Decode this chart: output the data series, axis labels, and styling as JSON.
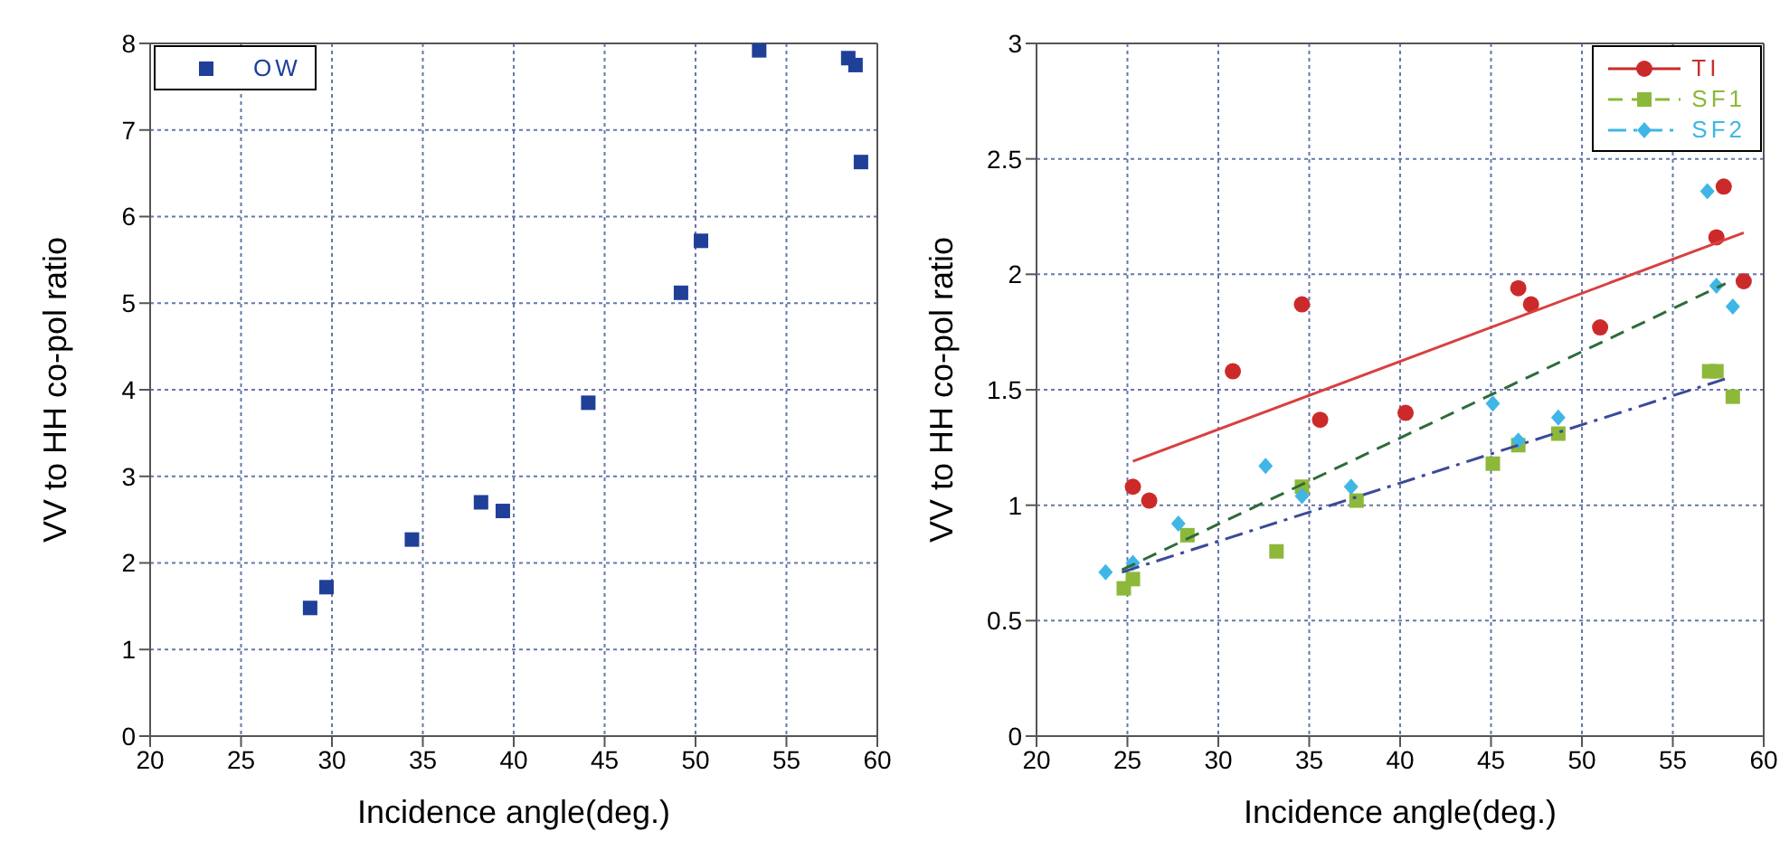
{
  "chart_data": [
    {
      "type": "scatter",
      "xlabel": "Incidence angle(deg.)",
      "ylabel": "VV to HH co-pol ratio",
      "xlim": [
        20,
        60
      ],
      "xticks": [
        20,
        25,
        30,
        35,
        40,
        45,
        50,
        55,
        60
      ],
      "ylim": [
        0,
        8
      ],
      "yticks": [
        0,
        1,
        2,
        3,
        4,
        5,
        6,
        7,
        8
      ],
      "grid": true,
      "legend": "top left",
      "marker": "square",
      "series": [
        {
          "name": "OW",
          "color": "#1f3f99",
          "x": [
            28.8,
            29.7,
            34.4,
            38.2,
            39.4,
            44.1,
            49.2,
            50.3,
            53.5,
            58.4,
            58.8,
            59.1
          ],
          "values": [
            1.48,
            1.72,
            2.27,
            2.7,
            2.6,
            3.85,
            5.12,
            5.72,
            7.92,
            7.83,
            7.75,
            6.63
          ]
        }
      ]
    },
    {
      "type": "scatter",
      "xlabel": "Incidence angle(deg.)",
      "ylabel": "VV to HH co-pol ratio",
      "xlim": [
        20,
        60
      ],
      "xticks": [
        20,
        25,
        30,
        35,
        40,
        45,
        50,
        55,
        60
      ],
      "ylim": [
        0,
        3
      ],
      "yticks": [
        0,
        0.5,
        1,
        1.5,
        2,
        2.5,
        3
      ],
      "grid": true,
      "legend": "top right",
      "series": [
        {
          "name": "TI",
          "color": "#cc2a2a",
          "marker": "circle",
          "line_style": "solid",
          "x": [
            25.3,
            26.2,
            30.8,
            34.6,
            35.6,
            40.3,
            46.5,
            47.2,
            51.0,
            57.4,
            57.8,
            58.9
          ],
          "values": [
            1.08,
            1.02,
            1.58,
            1.87,
            1.37,
            1.4,
            1.94,
            1.87,
            1.77,
            2.16,
            2.38,
            1.97
          ]
        },
        {
          "name": "SF1",
          "color": "#8db83a",
          "marker": "square",
          "line_style": "dashed",
          "x": [
            24.8,
            25.3,
            28.3,
            33.2,
            34.6,
            37.6,
            45.1,
            46.5,
            48.7,
            57.0,
            57.4,
            58.3
          ],
          "values": [
            0.64,
            0.68,
            0.87,
            0.8,
            1.08,
            1.02,
            1.18,
            1.26,
            1.31,
            1.58,
            1.58,
            1.47
          ]
        },
        {
          "name": "SF2",
          "color": "#3fb6e6",
          "marker": "diamond",
          "line_style": "dashdot",
          "x": [
            23.8,
            25.3,
            27.8,
            32.6,
            34.6,
            37.3,
            45.1,
            46.5,
            48.7,
            56.9,
            57.4,
            58.3
          ],
          "values": [
            0.71,
            0.75,
            0.92,
            1.17,
            1.04,
            1.08,
            1.44,
            1.28,
            1.38,
            2.36,
            1.95,
            1.86
          ]
        },
        {
          "type": "line",
          "color": "#d94040",
          "line_style": "solid",
          "marker": "none",
          "x": [
            25.3,
            58.9
          ],
          "values": [
            1.19,
            2.18
          ]
        },
        {
          "type": "line",
          "color": "#2e6b3a",
          "line_style": "dashed",
          "marker": "none",
          "x": [
            24.7,
            57.9
          ],
          "values": [
            0.72,
            1.96
          ]
        },
        {
          "type": "line",
          "color": "#3a4a9a",
          "line_style": "dashdot",
          "marker": "none",
          "x": [
            24.7,
            58.0
          ],
          "values": [
            0.71,
            1.55
          ]
        }
      ]
    }
  ]
}
